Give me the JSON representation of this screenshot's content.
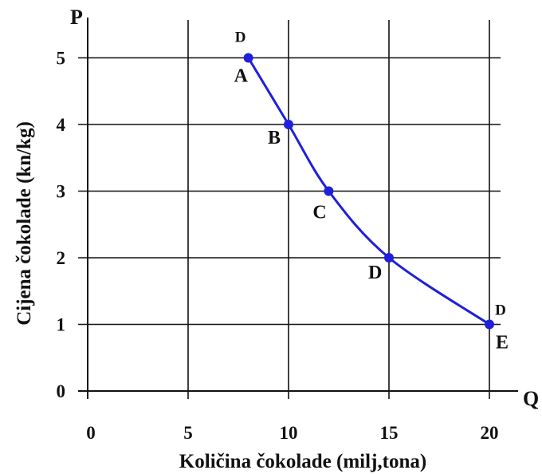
{
  "chart_data": {
    "type": "line",
    "xlabel": "Količina čokolade (milj,tona)",
    "ylabel": "Cijena čokolade (kn/kg)",
    "x_axis_letter": "Q",
    "y_axis_letter": "P",
    "xlim": [
      0,
      20
    ],
    "ylim": [
      0,
      5
    ],
    "x_ticks": [
      "0",
      "5",
      "10",
      "15",
      "20"
    ],
    "y_ticks": [
      "0",
      "1",
      "2",
      "3",
      "4",
      "5"
    ],
    "grid": true,
    "series": [
      {
        "color": "#1f1fdc",
        "points": [
          {
            "label": "A",
            "x": 8,
            "y": 5
          },
          {
            "label": "B",
            "x": 10,
            "y": 4
          },
          {
            "label": "C",
            "x": 12,
            "y": 3
          },
          {
            "label": "D",
            "x": 15,
            "y": 2
          },
          {
            "label": "E",
            "x": 20,
            "y": 1
          }
        ]
      }
    ],
    "annotations": [
      {
        "text": "D",
        "x": 8,
        "y": 5,
        "position": "above"
      },
      {
        "text": "D",
        "x": 20,
        "y": 1,
        "position": "upper-right"
      }
    ]
  }
}
